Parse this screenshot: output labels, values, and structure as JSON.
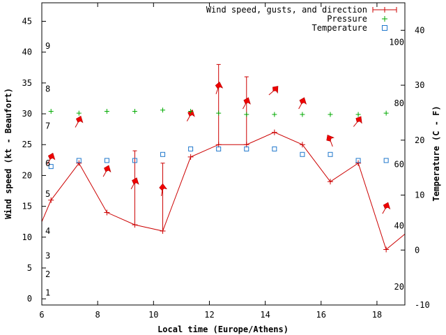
{
  "chart_data": {
    "type": "line",
    "title": "",
    "xlabel": "Local time (Europe/Athens)",
    "ylabel": "Wind speed (kt - Beaufort)",
    "y2label": "Temperature (C - F)",
    "xlim": [
      6,
      19
    ],
    "ylim": [
      -1,
      48
    ],
    "y2lim": [
      -10,
      45
    ],
    "grid": false,
    "legend_position": "top-right",
    "x_ticks": [
      6,
      8,
      10,
      12,
      14,
      16,
      18
    ],
    "y_ticks": [
      0,
      5,
      10,
      15,
      20,
      25,
      30,
      35,
      40,
      45
    ],
    "y2_ticks": [
      -10,
      0,
      10,
      20,
      30,
      40
    ],
    "beaufort_labels": [
      {
        "label": "1",
        "y": 1
      },
      {
        "label": "2",
        "y": 4
      },
      {
        "label": "3",
        "y": 7
      },
      {
        "label": "4",
        "y": 11
      },
      {
        "label": "5",
        "y": 17
      },
      {
        "label": "6",
        "y": 22
      },
      {
        "label": "7",
        "y": 28
      },
      {
        "label": "8",
        "y": 34
      },
      {
        "label": "9",
        "y": 41
      }
    ],
    "fahrenheit_labels": [
      {
        "label": "20",
        "y2": -6.7
      },
      {
        "label": "40",
        "y2": 4.4
      },
      {
        "label": "60",
        "y2": 15.6
      },
      {
        "label": "80",
        "y2": 26.7
      },
      {
        "label": "100",
        "y2": 37.8
      }
    ],
    "series": [
      {
        "name": "Wind speed, gusts, and direction",
        "color": "#cc0000",
        "x": [
          6.33,
          7.33,
          8.33,
          9.33,
          10.33,
          11.33,
          12.33,
          13.33,
          14.33,
          15.33,
          16.33,
          17.33,
          18.33
        ],
        "values": [
          16,
          22,
          14,
          12,
          11,
          23,
          25,
          25,
          27,
          25,
          19,
          22,
          8
        ],
        "gusts": [
          null,
          null,
          null,
          24,
          22,
          null,
          38,
          36,
          null,
          null,
          null,
          null,
          null
        ],
        "direction_deg": [
          200,
          200,
          200,
          200,
          180,
          200,
          190,
          200,
          220,
          200,
          150,
          210,
          200
        ],
        "lead_in": {
          "x": 6,
          "y": 12.5
        },
        "lead_out": {
          "x": 19,
          "y": 10.5
        }
      },
      {
        "name": "Pressure",
        "color": "#00aa00",
        "x": [
          6.33,
          7.33,
          8.33,
          9.33,
          10.33,
          11.33,
          12.33,
          13.33,
          14.33,
          15.33,
          16.33,
          17.33,
          18.33
        ],
        "values": [
          30.4,
          30.1,
          30.4,
          30.4,
          30.6,
          30.4,
          30.1,
          29.9,
          29.9,
          29.9,
          29.9,
          29.9,
          30.1
        ]
      },
      {
        "name": "Temperature",
        "color": "#1f77cc",
        "x": [
          6.33,
          7.33,
          8.33,
          9.33,
          10.33,
          11.33,
          12.33,
          13.33,
          14.33,
          15.33,
          16.33,
          17.33,
          18.33
        ],
        "values": [
          15.2,
          16.3,
          16.3,
          16.3,
          17.4,
          18.4,
          18.4,
          18.4,
          18.4,
          17.4,
          17.4,
          16.3,
          16.3
        ],
        "axis": "y2"
      }
    ]
  }
}
